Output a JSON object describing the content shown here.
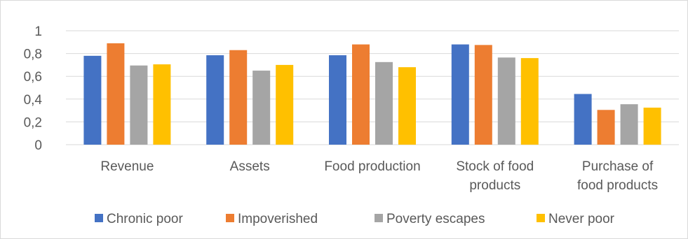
{
  "chart_data": {
    "type": "bar",
    "categories": [
      [
        "Revenue"
      ],
      [
        "Assets"
      ],
      [
        "Food production"
      ],
      [
        "Stock of food",
        "products"
      ],
      [
        "Purchase of",
        "food products"
      ]
    ],
    "series": [
      {
        "name": "Chronic poor",
        "color": "#4472C4",
        "values": [
          0.78,
          0.785,
          0.785,
          0.88,
          0.445
        ]
      },
      {
        "name": "Impoverished",
        "color": "#ED7D31",
        "values": [
          0.89,
          0.83,
          0.88,
          0.875,
          0.305
        ]
      },
      {
        "name": "Poverty escapes",
        "color": "#A5A5A5",
        "values": [
          0.695,
          0.65,
          0.725,
          0.765,
          0.355
        ]
      },
      {
        "name": "Never poor",
        "color": "#FFC000",
        "values": [
          0.705,
          0.7,
          0.68,
          0.76,
          0.325
        ]
      }
    ],
    "yticks": [
      "0",
      "0,2",
      "0,4",
      "0,6",
      "0,8",
      "1"
    ],
    "ylim": [
      0,
      1
    ],
    "grid": true,
    "legend_position": "bottom",
    "title": "",
    "xlabel": "",
    "ylabel": ""
  }
}
